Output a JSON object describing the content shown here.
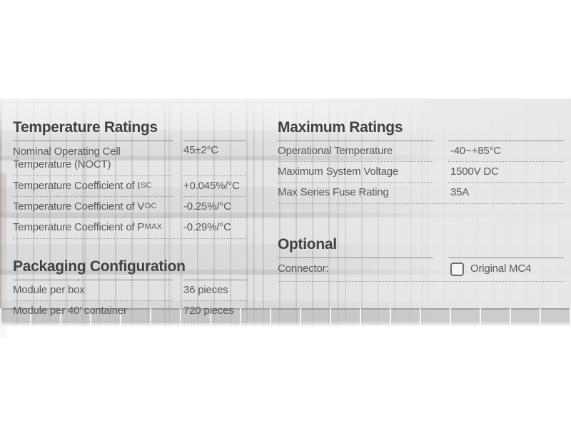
{
  "document": {
    "type_note": "solar module datasheet specification block"
  },
  "colors": {
    "heading_text": "#414042",
    "body_text": "#58595b",
    "solid_rule": "#8a8b8e",
    "dotted_rule": "#97989b",
    "checkbox_border": "#6d6e71"
  },
  "sections": {
    "temperature_ratings": {
      "title": "Temperature Ratings",
      "rows": [
        {
          "label": "Nominal Operating Cell Temperature (NOCT)",
          "sub": "",
          "value": "45±2°C"
        },
        {
          "label": "Temperature Coefficient of I",
          "sub": "SC",
          "value": "+0.045%/°C"
        },
        {
          "label": "Temperature Coefficient of V",
          "sub": "OC",
          "value": "-0.25%/°C"
        },
        {
          "label": "Temperature Coefficient of P",
          "sub": "MAX",
          "value": "-0.29%/°C"
        }
      ]
    },
    "maximum_ratings": {
      "title": "Maximum Ratings",
      "rows": [
        {
          "label": "Operational Temperature",
          "sub": "",
          "value": "-40~+85°C"
        },
        {
          "label": "Maximum System Voltage",
          "sub": "",
          "value": "1500V DC"
        },
        {
          "label": "Max Series Fuse Rating",
          "sub": "",
          "value": "35A"
        }
      ]
    },
    "optional": {
      "title": "Optional",
      "rows": [
        {
          "label": "Connector:",
          "checkbox_checked": false,
          "value": "Original MC4"
        }
      ]
    },
    "packaging_configuration": {
      "title": "Packaging Configuration",
      "rows": [
        {
          "label": "Module per box",
          "sub": "",
          "value": "36 pieces"
        },
        {
          "label": "Module per 40' container",
          "sub": "",
          "value": "720 pieces"
        }
      ]
    }
  }
}
